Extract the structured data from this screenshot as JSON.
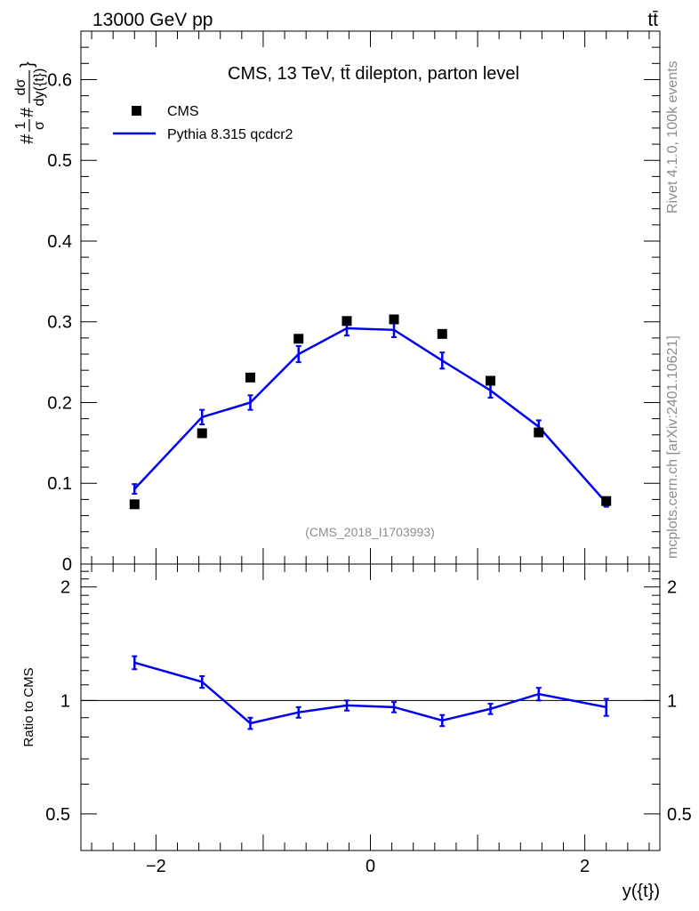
{
  "header": {
    "energy_label": "13000 GeV pp",
    "process_label": "tt̄"
  },
  "side_labels": {
    "rivet": "Rivet 4.1.0,  100k events",
    "mcplots": "mcplots.cern.ch [arXiv:2401.10621]"
  },
  "chart_data": [
    {
      "type": "scatter+line",
      "panel": "main",
      "title": "CMS, 13 TeV, tt̄ dilepton, parton level",
      "analysis_id": "(CMS_2018_I1703993)",
      "xlabel": "y({t})",
      "ylabel_parts": {
        "prefix": "#",
        "frac_num": "1",
        "frac_den": "σ",
        "mid": "#",
        "deriv_num": "dσ",
        "deriv_den": "dy({t})",
        "suffix": "}"
      },
      "xlim": [
        -2.7,
        2.7
      ],
      "ylim": [
        0,
        0.66
      ],
      "yticks": [
        0,
        0.1,
        0.2,
        0.3,
        0.4,
        0.5,
        0.6
      ],
      "ytick_labels": [
        "0",
        "0.1",
        "0.2",
        "0.3",
        "0.4",
        "0.5",
        "0.6"
      ],
      "xticks": [
        -2,
        0,
        2
      ],
      "xtick_labels": [
        "−2",
        "0",
        "2"
      ],
      "legend": [
        {
          "label": "CMS",
          "marker": "square",
          "color": "#000000"
        },
        {
          "label": "Pythia 8.315 qcdcr2",
          "marker": "line",
          "color": "#0000ee"
        }
      ],
      "series": [
        {
          "name": "CMS",
          "x": [
            -2.2,
            -1.57,
            -1.12,
            -0.67,
            -0.22,
            0.22,
            0.67,
            1.12,
            1.57,
            2.2
          ],
          "y": [
            0.074,
            0.162,
            0.231,
            0.279,
            0.301,
            0.303,
            0.285,
            0.227,
            0.163,
            0.078
          ]
        },
        {
          "name": "Pythia 8.315 qcdcr2",
          "x": [
            -2.2,
            -1.57,
            -1.12,
            -0.67,
            -0.22,
            0.22,
            0.67,
            1.12,
            1.57,
            2.2
          ],
          "y": [
            0.093,
            0.182,
            0.2,
            0.26,
            0.292,
            0.29,
            0.252,
            0.215,
            0.17,
            0.076
          ],
          "yerr": [
            0.006,
            0.009,
            0.009,
            0.01,
            0.009,
            0.009,
            0.01,
            0.009,
            0.008,
            0.005
          ]
        }
      ]
    },
    {
      "type": "line",
      "panel": "ratio",
      "ylabel": "Ratio to CMS",
      "xlim": [
        -2.7,
        2.7
      ],
      "ylim": [
        0.4,
        2.3
      ],
      "ylog": true,
      "yticks": [
        0.5,
        1,
        2
      ],
      "ytick_labels": [
        "0.5",
        "1",
        "2"
      ],
      "reference_line": 1.0,
      "series": [
        {
          "name": "Pythia 8.315 qcdcr2 / CMS",
          "x": [
            -2.2,
            -1.57,
            -1.12,
            -0.67,
            -0.22,
            0.22,
            0.67,
            1.12,
            1.57,
            2.2
          ],
          "y": [
            1.26,
            1.12,
            0.87,
            0.93,
            0.97,
            0.96,
            0.885,
            0.95,
            1.04,
            0.96
          ],
          "yerr": [
            0.05,
            0.04,
            0.03,
            0.03,
            0.03,
            0.03,
            0.03,
            0.03,
            0.04,
            0.05
          ]
        }
      ]
    }
  ]
}
